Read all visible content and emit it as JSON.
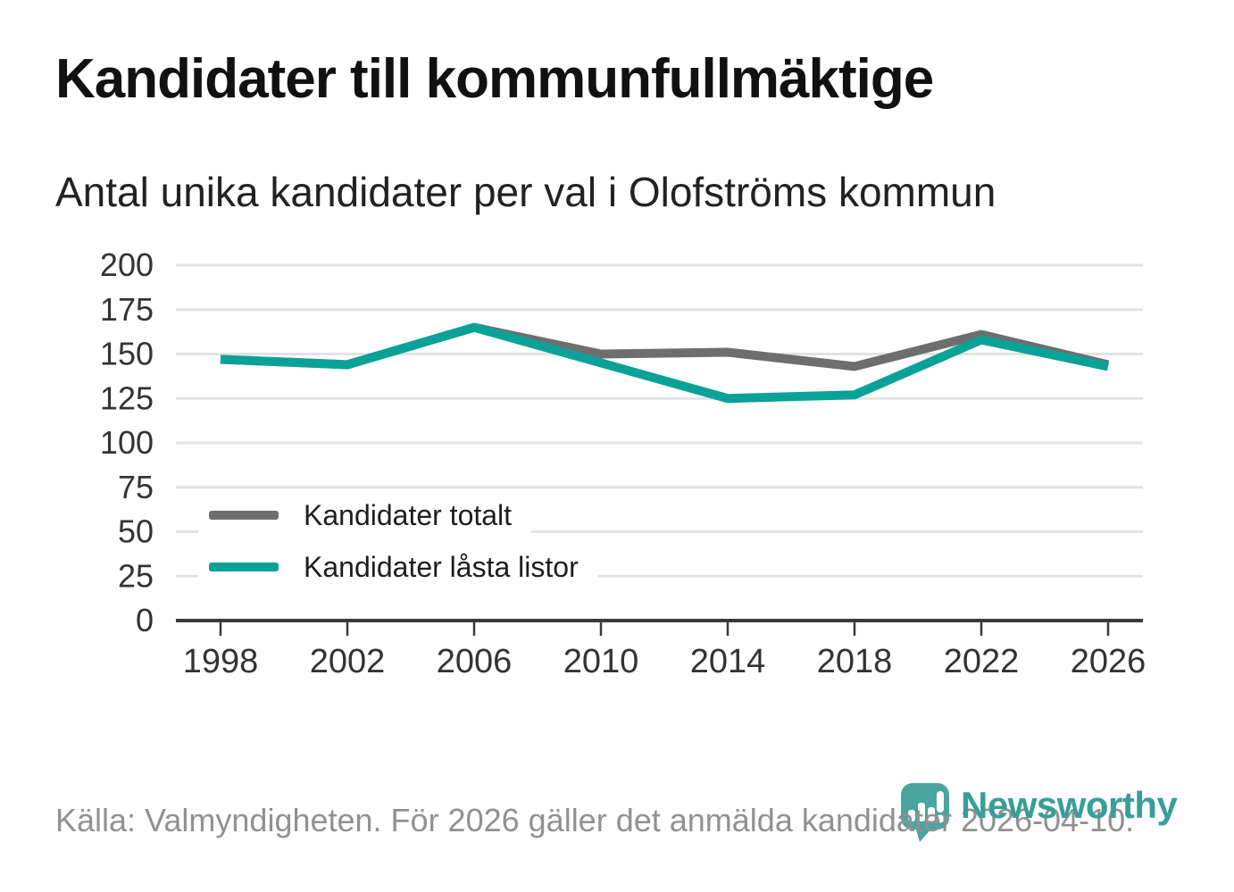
{
  "title": "Kandidater till kommunfullmäktige",
  "subtitle": "Antal unika kandidater per val i Olofströms kommun",
  "source": "Källa: Valmyndigheten. För 2026 gäller det anmälda kandidater 2026-04-10.",
  "branding": {
    "wordmark": "Newsworthy",
    "logo_icon": "newsworthy-map-pin-bar-chart",
    "brand_teal": "#379e98",
    "icon_teal": "#4aa5a0"
  },
  "colors": {
    "total": "#6e6e6e",
    "locked": "#0aa296",
    "gridline": "#e3e3e3",
    "axis": "#3a3a3a",
    "tick_label": "#333333",
    "footer_text": "#919191"
  },
  "legend": {
    "items": [
      {
        "label": "Kandidater totalt",
        "color_key": "total"
      },
      {
        "label": "Kandidater låsta listor",
        "color_key": "locked"
      }
    ]
  },
  "chart_data": {
    "type": "line",
    "title": "Kandidater till kommunfullmäktige",
    "subtitle": "Antal unika kandidater per val i Olofströms kommun",
    "x": [
      1998,
      2002,
      2006,
      2010,
      2014,
      2018,
      2022,
      2026
    ],
    "series": [
      {
        "name": "Kandidater totalt",
        "color_key": "total",
        "values": [
          147,
          144,
          165,
          150,
          151,
          143,
          161,
          144
        ]
      },
      {
        "name": "Kandidater låsta listor",
        "color_key": "locked",
        "values": [
          147,
          144,
          165,
          145,
          125,
          127,
          158,
          143
        ]
      }
    ],
    "ylim": [
      0,
      200
    ],
    "yticks": [
      0,
      25,
      50,
      75,
      100,
      125,
      150,
      175,
      200
    ],
    "xlabel": "",
    "ylabel": "",
    "grid": true,
    "legend_position": "inside-left"
  }
}
